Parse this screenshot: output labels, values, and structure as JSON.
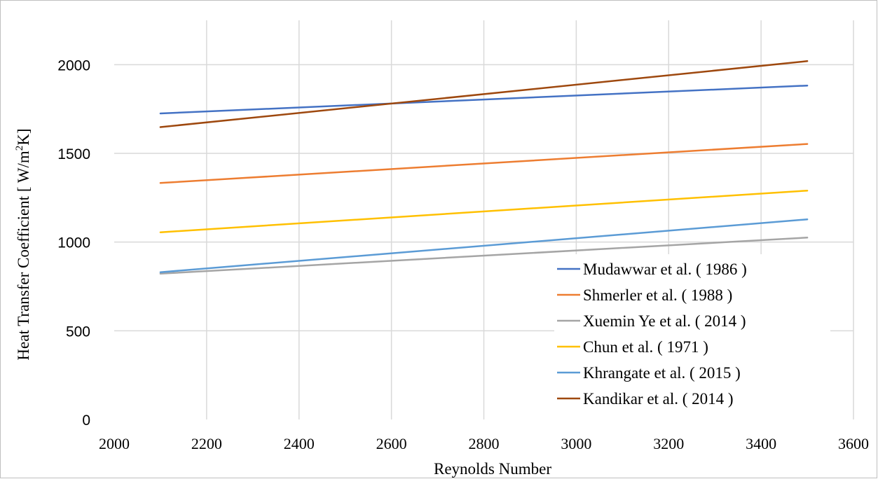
{
  "chart_data": {
    "type": "line",
    "xlabel": "Reynolds Number",
    "ylabel": {
      "main": "Heat Transfer Coefficient  [ W/m",
      "sup": "2",
      "tail": "K]"
    },
    "xlim": [
      2000,
      3600
    ],
    "ylim": [
      0,
      2250
    ],
    "x_ticks": [
      2000,
      2200,
      2400,
      2600,
      2800,
      3000,
      3200,
      3400,
      3600
    ],
    "y_ticks": [
      0,
      500,
      1000,
      1500,
      2000
    ],
    "grid": true,
    "legend_position": "bottom-right",
    "series": [
      {
        "name": "Mudawwar et al. ( 1986 )",
        "color": "#4472c4",
        "x": [
          2100,
          3500
        ],
        "y": [
          1725,
          1882
        ]
      },
      {
        "name": "Shmerler et al. ( 1988 )",
        "color": "#ed7d31",
        "x": [
          2100,
          3500
        ],
        "y": [
          1333,
          1553
        ]
      },
      {
        "name": "Xuemin Ye et al. ( 2014 )",
        "color": "#a5a5a5",
        "x": [
          2100,
          3500
        ],
        "y": [
          822,
          1025
        ]
      },
      {
        "name": "Chun et al. ( 1971 )",
        "color": "#ffc000",
        "x": [
          2100,
          3500
        ],
        "y": [
          1055,
          1290
        ]
      },
      {
        "name": "Khrangate et al. ( 2015 )",
        "color": "#5b9bd5",
        "x": [
          2100,
          3500
        ],
        "y": [
          830,
          1128
        ]
      },
      {
        "name": "Kandikar et al. ( 2014 )",
        "color": "#9e480e",
        "x": [
          2100,
          3500
        ],
        "y": [
          1648,
          2020
        ]
      }
    ]
  }
}
